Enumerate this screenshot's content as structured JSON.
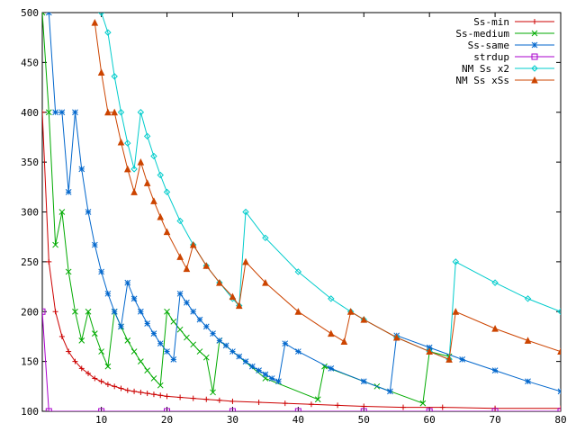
{
  "chart_data": {
    "type": "line",
    "title": "",
    "xlabel": "",
    "ylabel": "",
    "xlim": [
      1,
      80
    ],
    "ylim": [
      100,
      500
    ],
    "xticks": [
      10,
      20,
      30,
      40,
      50,
      60,
      70,
      80
    ],
    "yticks": [
      100,
      150,
      200,
      250,
      300,
      350,
      400,
      450,
      500
    ],
    "grid": false,
    "legend_position": "top-right",
    "series": [
      {
        "name": "Ss-min",
        "color": "#cc0000",
        "marker": "plus",
        "points": [
          [
            1,
            400
          ],
          [
            2,
            250
          ],
          [
            3,
            200
          ],
          [
            4,
            175
          ],
          [
            5,
            160
          ],
          [
            6,
            150
          ],
          [
            7,
            143
          ],
          [
            8,
            138
          ],
          [
            9,
            133
          ],
          [
            10,
            130
          ],
          [
            11,
            127
          ],
          [
            12,
            125
          ],
          [
            13,
            123
          ],
          [
            14,
            121
          ],
          [
            15,
            120
          ],
          [
            16,
            119
          ],
          [
            17,
            118
          ],
          [
            18,
            117
          ],
          [
            19,
            116
          ],
          [
            20,
            115
          ],
          [
            22,
            114
          ],
          [
            24,
            113
          ],
          [
            26,
            112
          ],
          [
            28,
            111
          ],
          [
            30,
            110
          ],
          [
            34,
            109
          ],
          [
            38,
            108
          ],
          [
            42,
            107
          ],
          [
            46,
            106
          ],
          [
            50,
            105
          ],
          [
            56,
            104
          ],
          [
            62,
            104
          ],
          [
            70,
            103
          ],
          [
            80,
            103
          ]
        ]
      },
      {
        "name": "Ss-medium",
        "color": "#00aa00",
        "marker": "cross",
        "points": [
          [
            1,
            500
          ],
          [
            2,
            400
          ],
          [
            3,
            267
          ],
          [
            4,
            300
          ],
          [
            5,
            240
          ],
          [
            6,
            200
          ],
          [
            7,
            171
          ],
          [
            8,
            200
          ],
          [
            9,
            178
          ],
          [
            10,
            160
          ],
          [
            11,
            145
          ],
          [
            12,
            200
          ],
          [
            13,
            185
          ],
          [
            14,
            171
          ],
          [
            15,
            160
          ],
          [
            16,
            150
          ],
          [
            17,
            141
          ],
          [
            18,
            133
          ],
          [
            19,
            126
          ],
          [
            20,
            200
          ],
          [
            21,
            190
          ],
          [
            22,
            182
          ],
          [
            23,
            174
          ],
          [
            24,
            167
          ],
          [
            25,
            160
          ],
          [
            26,
            154
          ],
          [
            27,
            119
          ],
          [
            28,
            171
          ],
          [
            35,
            133
          ],
          [
            43,
            112
          ],
          [
            44,
            145
          ],
          [
            52,
            125
          ],
          [
            59,
            108
          ],
          [
            60,
            160
          ],
          [
            63,
            155
          ]
        ]
      },
      {
        "name": "Ss-same",
        "color": "#0066cc",
        "marker": "star",
        "points": [
          [
            2,
            500
          ],
          [
            3,
            400
          ],
          [
            4,
            400
          ],
          [
            5,
            320
          ],
          [
            6,
            400
          ],
          [
            7,
            343
          ],
          [
            8,
            300
          ],
          [
            9,
            267
          ],
          [
            10,
            240
          ],
          [
            11,
            218
          ],
          [
            12,
            200
          ],
          [
            13,
            185
          ],
          [
            14,
            229
          ],
          [
            15,
            213
          ],
          [
            16,
            200
          ],
          [
            17,
            188
          ],
          [
            18,
            178
          ],
          [
            19,
            168
          ],
          [
            20,
            160
          ],
          [
            21,
            152
          ],
          [
            22,
            218
          ],
          [
            23,
            209
          ],
          [
            24,
            200
          ],
          [
            25,
            192
          ],
          [
            26,
            185
          ],
          [
            27,
            178
          ],
          [
            28,
            171
          ],
          [
            29,
            166
          ],
          [
            30,
            160
          ],
          [
            31,
            155
          ],
          [
            32,
            150
          ],
          [
            33,
            145
          ],
          [
            34,
            141
          ],
          [
            35,
            137
          ],
          [
            36,
            133
          ],
          [
            37,
            130
          ],
          [
            38,
            168
          ],
          [
            40,
            160
          ],
          [
            45,
            143
          ],
          [
            50,
            130
          ],
          [
            54,
            120
          ],
          [
            55,
            176
          ],
          [
            60,
            164
          ],
          [
            65,
            152
          ],
          [
            70,
            141
          ],
          [
            75,
            130
          ],
          [
            80,
            120
          ]
        ]
      },
      {
        "name": "strdup",
        "color": "#aa00cc",
        "marker": "square",
        "points": [
          [
            1,
            200
          ],
          [
            2,
            100
          ],
          [
            10,
            100
          ],
          [
            20,
            100
          ],
          [
            30,
            100
          ],
          [
            40,
            100
          ],
          [
            50,
            100
          ],
          [
            60,
            100
          ],
          [
            70,
            100
          ],
          [
            80,
            100
          ]
        ]
      },
      {
        "name": "NM Ss x2",
        "color": "#00cccc",
        "marker": "diamond",
        "points": [
          [
            10,
            500
          ],
          [
            11,
            480
          ],
          [
            12,
            436
          ],
          [
            13,
            400
          ],
          [
            14,
            369
          ],
          [
            15,
            343
          ],
          [
            16,
            400
          ],
          [
            17,
            376
          ],
          [
            18,
            356
          ],
          [
            19,
            337
          ],
          [
            20,
            320
          ],
          [
            22,
            291
          ],
          [
            24,
            267
          ],
          [
            26,
            246
          ],
          [
            28,
            229
          ],
          [
            30,
            213
          ],
          [
            31,
            206
          ],
          [
            32,
            300
          ],
          [
            35,
            274
          ],
          [
            40,
            240
          ],
          [
            45,
            213
          ],
          [
            48,
            200
          ],
          [
            50,
            192
          ],
          [
            55,
            174
          ],
          [
            60,
            160
          ],
          [
            63,
            152
          ],
          [
            64,
            250
          ],
          [
            70,
            229
          ],
          [
            75,
            213
          ],
          [
            80,
            200
          ]
        ]
      },
      {
        "name": "NM Ss xSs",
        "color": "#cc4400",
        "marker": "triangle",
        "points": [
          [
            9,
            490
          ],
          [
            10,
            440
          ],
          [
            11,
            400
          ],
          [
            12,
            400
          ],
          [
            13,
            370
          ],
          [
            14,
            343
          ],
          [
            15,
            320
          ],
          [
            16,
            350
          ],
          [
            17,
            329
          ],
          [
            18,
            311
          ],
          [
            19,
            295
          ],
          [
            20,
            280
          ],
          [
            22,
            255
          ],
          [
            23,
            243
          ],
          [
            24,
            267
          ],
          [
            26,
            246
          ],
          [
            28,
            229
          ],
          [
            30,
            215
          ],
          [
            31,
            206
          ],
          [
            32,
            250
          ],
          [
            35,
            229
          ],
          [
            40,
            200
          ],
          [
            45,
            178
          ],
          [
            47,
            170
          ],
          [
            48,
            200
          ],
          [
            50,
            192
          ],
          [
            55,
            174
          ],
          [
            60,
            160
          ],
          [
            63,
            152
          ],
          [
            64,
            200
          ],
          [
            70,
            183
          ],
          [
            75,
            171
          ],
          [
            80,
            160
          ]
        ]
      }
    ]
  }
}
